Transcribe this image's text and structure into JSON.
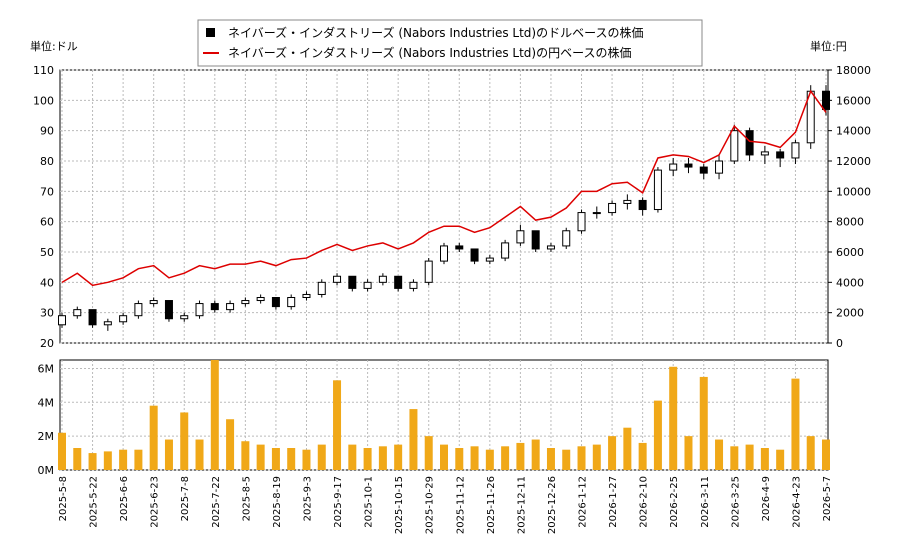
{
  "chart_data": [
    {
      "type": "candlestick",
      "legend": "top",
      "grid": true,
      "ylabel": "単位:ドル",
      "y2label": "単位:円",
      "ylim": [
        20,
        110
      ],
      "yticks": [
        20,
        30,
        40,
        50,
        60,
        70,
        80,
        90,
        100,
        110
      ],
      "y2lim": [
        0,
        18000
      ],
      "y2ticks": [
        0,
        2000,
        4000,
        6000,
        8000,
        10000,
        12000,
        14000,
        16000,
        18000
      ],
      "series": [
        {
          "name": "ネイバーズ・インダストリーズ (Nabors Industries Ltd)のドルベースの株価",
          "color": "#000000",
          "open": [
            26,
            29,
            31,
            26,
            27,
            29,
            33,
            34,
            28,
            29,
            33,
            31,
            33,
            34,
            35,
            32,
            35,
            36,
            40,
            42,
            38,
            40,
            42,
            38,
            40,
            47,
            52,
            51,
            47,
            48,
            53,
            57,
            51,
            52,
            57,
            63,
            63,
            66,
            67,
            64,
            77,
            79,
            78,
            76,
            80,
            90,
            82,
            83,
            81,
            86,
            103
          ],
          "high": [
            30,
            32,
            31,
            28,
            30,
            34,
            35,
            34,
            30,
            34,
            34,
            34,
            35,
            36,
            35,
            36,
            37,
            41,
            43,
            42,
            41,
            43,
            42,
            41,
            48,
            53,
            53,
            51,
            49,
            54,
            59,
            57,
            53,
            58,
            64,
            65,
            67,
            69,
            68,
            78,
            81,
            81,
            79,
            82,
            92,
            91,
            85,
            84,
            87,
            105,
            105
          ],
          "low": [
            25,
            28,
            25,
            24,
            26,
            28,
            32,
            27,
            27,
            28,
            30,
            30,
            32,
            33,
            31,
            31,
            34,
            35,
            39,
            37,
            37,
            39,
            37,
            37,
            39,
            46,
            50,
            46,
            46,
            47,
            52,
            50,
            50,
            51,
            56,
            61,
            62,
            64,
            62,
            63,
            75,
            76,
            74,
            74,
            79,
            80,
            79,
            78,
            79,
            84,
            95
          ],
          "close": [
            29,
            31,
            26,
            27,
            29,
            33,
            34,
            28,
            29,
            33,
            31,
            33,
            34,
            35,
            32,
            35,
            36,
            40,
            42,
            38,
            40,
            42,
            38,
            40,
            47,
            52,
            51,
            47,
            48,
            53,
            57,
            51,
            52,
            57,
            63,
            63,
            66,
            67,
            64,
            77,
            79,
            78,
            76,
            80,
            90,
            82,
            83,
            81,
            86,
            103,
            97
          ]
        },
        {
          "name": "ネイバーズ・インダストリーズ (Nabors Industries Ltd)の円ベースの株価",
          "color": "#dd0000",
          "axis": "y2",
          "values": [
            4000,
            4600,
            3800,
            4000,
            4300,
            4900,
            5100,
            4300,
            4600,
            5100,
            4900,
            5200,
            5200,
            5400,
            5100,
            5500,
            5600,
            6100,
            6500,
            6100,
            6400,
            6600,
            6200,
            6600,
            7300,
            7700,
            7700,
            7300,
            7600,
            8300,
            9000,
            8100,
            8300,
            8900,
            10000,
            10000,
            10500,
            10600,
            9900,
            12200,
            12400,
            12300,
            11900,
            12400,
            14300,
            13300,
            13200,
            12900,
            13900,
            16600,
            15200
          ]
        }
      ]
    },
    {
      "type": "bar",
      "grid": true,
      "color": "#f0a818",
      "ylim": [
        0,
        6.5
      ],
      "yticks": [
        {
          "value": 0,
          "label": "0M"
        },
        {
          "value": 2,
          "label": "2M"
        },
        {
          "value": 4,
          "label": "4M"
        },
        {
          "value": 6,
          "label": "6M"
        }
      ],
      "categories": [
        "2025-5-8",
        null,
        "2025-5-22",
        null,
        "2025-6-6",
        null,
        "2025-6-23",
        null,
        "2025-7-8",
        null,
        "2025-7-22",
        null,
        "2025-8-5",
        null,
        "2025-8-19",
        null,
        "2025-9-3",
        null,
        "2025-9-17",
        null,
        "2025-10-1",
        null,
        "2025-10-15",
        null,
        "2025-10-29",
        null,
        "2025-11-12",
        null,
        "2025-11-26",
        null,
        "2025-12-11",
        null,
        "2025-12-26",
        null,
        "2026-1-12",
        null,
        "2026-1-27",
        null,
        "2026-2-10",
        null,
        "2026-2-25",
        null,
        "2026-3-11",
        null,
        "2026-3-25",
        null,
        "2026-4-9",
        null,
        "2026-4-23",
        null,
        "2026-5-7"
      ],
      "values": [
        2.2,
        1.3,
        1.0,
        1.1,
        1.2,
        1.2,
        3.8,
        1.8,
        3.4,
        1.8,
        6.5,
        3.0,
        1.7,
        1.5,
        1.3,
        1.3,
        1.2,
        1.5,
        5.3,
        1.5,
        1.3,
        1.4,
        1.5,
        3.6,
        2.0,
        1.5,
        1.3,
        1.4,
        1.2,
        1.4,
        1.6,
        1.8,
        1.3,
        1.2,
        1.4,
        1.5,
        2.0,
        2.5,
        1.6,
        4.1,
        6.1,
        2.0,
        5.5,
        1.8,
        1.4,
        1.5,
        1.3,
        1.2,
        5.4,
        2.0,
        1.8
      ]
    }
  ]
}
